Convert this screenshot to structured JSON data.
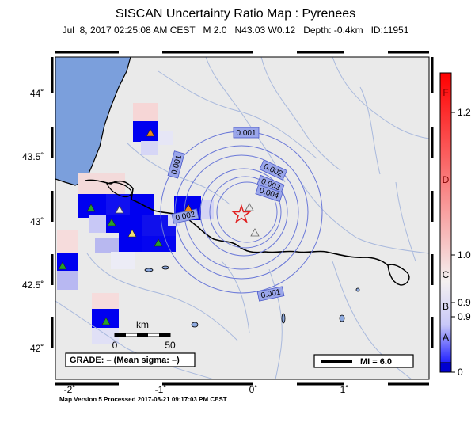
{
  "header": {
    "title": "SISCAN Uncertainty Ratio Map : Pyrenees",
    "subtitle": "Jul  8, 2017 02:25:08 AM CEST   M 2.0   N43.03 W0.12   Depth: -0.4km   ID:11951"
  },
  "footer": "Map Version 5 Processed 2017-08-21 09:17:03 PM CEST",
  "map": {
    "lat_ticks": [
      "44˚",
      "43.5˚",
      "43˚",
      "42.5˚",
      "42˚"
    ],
    "lon_ticks": [
      "-2˚",
      "-1˚",
      "0˚",
      "1˚"
    ],
    "contour_labels": [
      "0.001",
      "0.001",
      "0.002",
      "0.003",
      "0.004",
      "0.002",
      "0.001"
    ],
    "scale_title": "km",
    "scale_min": "0",
    "scale_max": "50",
    "grade_text": "GRADE: – (Mean sigma: –)",
    "mi_legend": "MI = 6.0",
    "colors": {
      "ocean": "#7b9fdc",
      "land": "#eaeaea",
      "rivers": "#a7b8dc",
      "contours": "#6a78d8",
      "epicenter": "#e02020"
    }
  },
  "colorbar": {
    "colors": [
      "#0000ff",
      "#f8f8f8",
      "#ff0000"
    ],
    "letters": [
      "F",
      "D",
      "C",
      "B",
      "A"
    ],
    "values_right": [
      "1.2",
      "1.0",
      "0.9",
      "0.9",
      "0"
    ]
  }
}
